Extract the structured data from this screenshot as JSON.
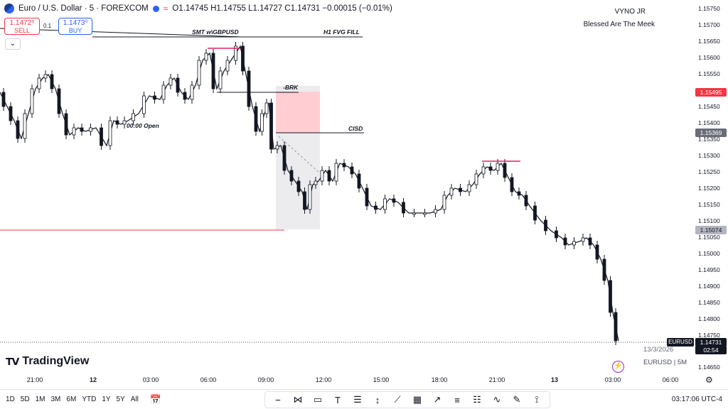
{
  "header": {
    "title": "Euro / U.S. Dollar · 5 · FOREXCOM",
    "ohlc": "O1.14745 H1.14755 L1.14727 C1.14731 −0.00015 (−0.01%)"
  },
  "trade": {
    "sell_price": "1.1472⁹",
    "sell_label": "SELL",
    "spread": "0.1",
    "buy_price": "1.1473⁰",
    "buy_label": "BUY"
  },
  "watermark": {
    "name": "VYNO JR",
    "tagline": "Blessed Are The Meek"
  },
  "annotations": {
    "smt": "SMT w\\GBPUSD",
    "fvg": "H1 FVG FILL",
    "brk": "-BRK",
    "cisd": "CISD",
    "open": "00:00 Open"
  },
  "price_scale": {
    "ticks": [
      "1.15750",
      "1.15700",
      "1.15650",
      "1.15600",
      "1.15550",
      "1.15450",
      "1.15400",
      "1.15350",
      "1.15300",
      "1.15250",
      "1.15200",
      "1.15150",
      "1.15100",
      "1.15050",
      "1.15000",
      "1.14950",
      "1.14900",
      "1.14850",
      "1.14800",
      "1.14750",
      "1.14650"
    ],
    "badges": {
      "red": "1.15495",
      "gray1": "1.15369",
      "gray2": "1.15074",
      "current": "1.14731",
      "countdown": "02:54"
    },
    "symbol_badge": "EURUSD"
  },
  "time_scale": [
    "21:00",
    "12",
    "03:00",
    "06:00",
    "09:00",
    "12:00",
    "15:00",
    "18:00",
    "21:00",
    "13",
    "03:00",
    "06:00"
  ],
  "symbol_info": {
    "date": "13/3/2026",
    "symbol": "EURUSD | 5M"
  },
  "branding": "TradingView",
  "toolbar": {
    "ranges": [
      "1D",
      "5D",
      "1M",
      "3M",
      "6M",
      "YTD",
      "1Y",
      "5Y",
      "All"
    ],
    "clock": "03:17:06 UTC-4"
  },
  "colors": {
    "red": "#f23645",
    "blue": "#2962ff",
    "pink": "#e91e63",
    "purple": "#9c27b0"
  }
}
